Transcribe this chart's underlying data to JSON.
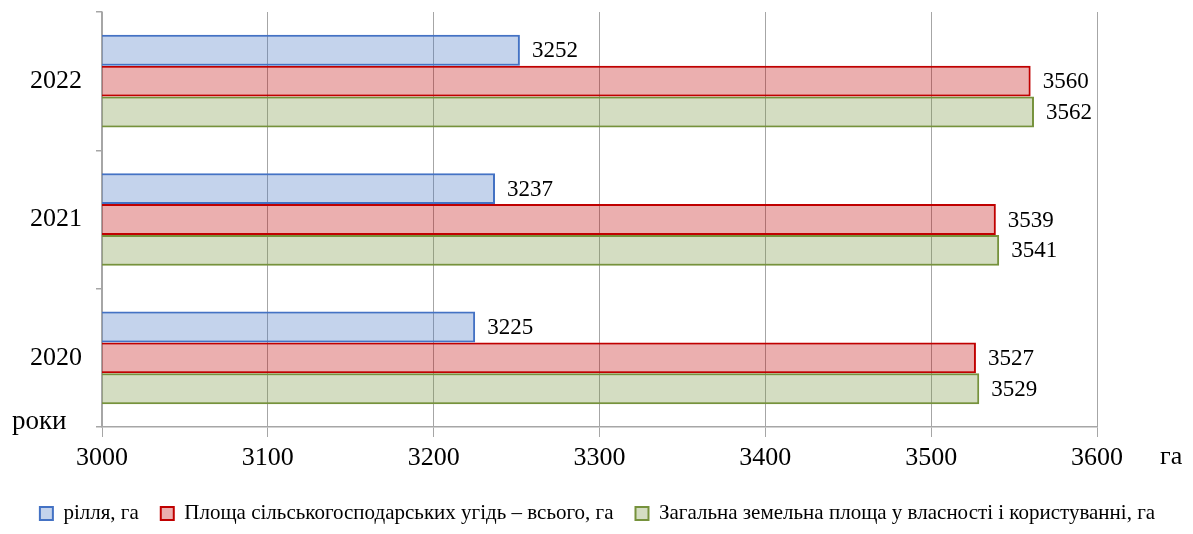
{
  "chart_data": {
    "type": "bar",
    "orientation": "horizontal",
    "categories": [
      "2022",
      "2021",
      "2020"
    ],
    "series": [
      {
        "name": "рілля, га",
        "color": "#4472c4",
        "values": [
          3252,
          3237,
          3225
        ]
      },
      {
        "name": "Площа сільськогосподарських угідь – всього, га",
        "color": "#c00000",
        "values": [
          3560,
          3539,
          3527
        ]
      },
      {
        "name": "Загальна земельна площа у власності і користуванні, га",
        "color": "#76923c",
        "values": [
          3562,
          3541,
          3529
        ]
      }
    ],
    "xlim": [
      3000,
      3600
    ],
    "xticks": [
      3000,
      3100,
      3200,
      3300,
      3400,
      3500,
      3600
    ],
    "xlabel": "га",
    "ylabel": "роки",
    "grid": "x",
    "legend": "bottom",
    "data_labels": true
  }
}
